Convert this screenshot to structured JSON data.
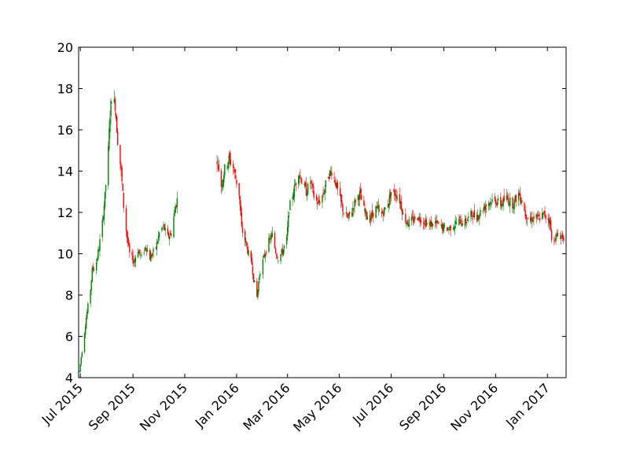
{
  "chart_data": {
    "type": "candlestick",
    "title": "",
    "xlabel": "",
    "ylabel": "",
    "grid": false,
    "legend": "none",
    "colors": {
      "up": "#008000",
      "down": "#ff0000",
      "axes": "#000000",
      "background": "#ffffff"
    },
    "x_range": [
      "2015-06-29",
      "2017-01-23"
    ],
    "ylim": [
      4,
      20
    ],
    "y_ticks": [
      4,
      6,
      8,
      10,
      12,
      14,
      16,
      18,
      20
    ],
    "x_ticks": [
      {
        "date": "2015-07-01",
        "label": "Jul 2015"
      },
      {
        "date": "2015-09-01",
        "label": "Sep 2015"
      },
      {
        "date": "2015-11-01",
        "label": "Nov 2015"
      },
      {
        "date": "2016-01-01",
        "label": "Jan 2016"
      },
      {
        "date": "2016-03-01",
        "label": "Mar 2016"
      },
      {
        "date": "2016-05-01",
        "label": "May 2016"
      },
      {
        "date": "2016-07-01",
        "label": "Jul 2016"
      },
      {
        "date": "2016-09-01",
        "label": "Sep 2016"
      },
      {
        "date": "2016-11-01",
        "label": "Nov 2016"
      },
      {
        "date": "2017-01-01",
        "label": "Jan 2017"
      }
    ],
    "approx_close_series": {
      "note_free": true,
      "points": [
        [
          "2015-06-30",
          4.3
        ],
        [
          "2015-07-02",
          5.0
        ],
        [
          "2015-07-06",
          6.2
        ],
        [
          "2015-07-08",
          6.9
        ],
        [
          "2015-07-13",
          8.3
        ],
        [
          "2015-07-15",
          9.2
        ],
        [
          "2015-07-20",
          9.6
        ],
        [
          "2015-07-23",
          10.3
        ],
        [
          "2015-07-27",
          11.5
        ],
        [
          "2015-07-30",
          12.8
        ],
        [
          "2015-08-03",
          15.0
        ],
        [
          "2015-08-05",
          16.8
        ],
        [
          "2015-08-07",
          17.6
        ],
        [
          "2015-08-11",
          17.2
        ],
        [
          "2015-08-14",
          15.5
        ],
        [
          "2015-08-18",
          14.0
        ],
        [
          "2015-08-21",
          12.3
        ],
        [
          "2015-08-25",
          10.8
        ],
        [
          "2015-08-28",
          10.0
        ],
        [
          "2015-09-02",
          9.6
        ],
        [
          "2015-09-07",
          10.2
        ],
        [
          "2015-09-11",
          9.8
        ],
        [
          "2015-09-16",
          10.4
        ],
        [
          "2015-09-21",
          9.8
        ],
        [
          "2015-09-28",
          10.3
        ],
        [
          "2015-10-02",
          11.0
        ],
        [
          "2015-10-07",
          11.3
        ],
        [
          "2015-10-12",
          10.8
        ],
        [
          "2015-10-16",
          11.0
        ],
        [
          "2015-10-21",
          12.3
        ],
        [
          "2015-10-23",
          12.6
        ],
        [
          "2015-12-09",
          14.6
        ],
        [
          "2015-12-14",
          13.3
        ],
        [
          "2015-12-18",
          14.1
        ],
        [
          "2015-12-23",
          14.6
        ],
        [
          "2015-12-28",
          14.2
        ],
        [
          "2016-01-04",
          12.9
        ],
        [
          "2016-01-07",
          11.2
        ],
        [
          "2016-01-12",
          10.5
        ],
        [
          "2016-01-15",
          10.0
        ],
        [
          "2016-01-19",
          9.5
        ],
        [
          "2016-01-21",
          8.8
        ],
        [
          "2016-01-25",
          7.9
        ],
        [
          "2016-01-28",
          9.0
        ],
        [
          "2016-02-02",
          9.8
        ],
        [
          "2016-02-08",
          10.6
        ],
        [
          "2016-02-12",
          10.9
        ],
        [
          "2016-02-16",
          10.1
        ],
        [
          "2016-02-19",
          9.8
        ],
        [
          "2016-02-24",
          10.1
        ],
        [
          "2016-02-29",
          10.7
        ],
        [
          "2016-03-03",
          12.2
        ],
        [
          "2016-03-08",
          13.0
        ],
        [
          "2016-03-14",
          14.0
        ],
        [
          "2016-03-18",
          13.5
        ],
        [
          "2016-03-23",
          13.0
        ],
        [
          "2016-03-28",
          13.5
        ],
        [
          "2016-04-01",
          12.8
        ],
        [
          "2016-04-06",
          12.4
        ],
        [
          "2016-04-12",
          12.9
        ],
        [
          "2016-04-18",
          13.8
        ],
        [
          "2016-04-22",
          14.0
        ],
        [
          "2016-04-27",
          13.4
        ],
        [
          "2016-05-02",
          12.6
        ],
        [
          "2016-05-06",
          12.0
        ],
        [
          "2016-05-11",
          11.7
        ],
        [
          "2016-05-16",
          12.1
        ],
        [
          "2016-05-20",
          12.6
        ],
        [
          "2016-05-25",
          12.9
        ],
        [
          "2016-05-31",
          12.0
        ],
        [
          "2016-06-06",
          11.7
        ],
        [
          "2016-06-13",
          12.2
        ],
        [
          "2016-06-20",
          11.9
        ],
        [
          "2016-06-27",
          12.4
        ],
        [
          "2016-07-01",
          13.0
        ],
        [
          "2016-07-07",
          12.9
        ],
        [
          "2016-07-12",
          12.5
        ],
        [
          "2016-07-15",
          11.9
        ],
        [
          "2016-07-20",
          11.5
        ],
        [
          "2016-07-26",
          11.6
        ],
        [
          "2016-08-01",
          11.8
        ],
        [
          "2016-08-08",
          11.6
        ],
        [
          "2016-08-15",
          11.4
        ],
        [
          "2016-08-22",
          11.5
        ],
        [
          "2016-08-29",
          11.3
        ],
        [
          "2016-09-06",
          11.2
        ],
        [
          "2016-09-13",
          11.4
        ],
        [
          "2016-09-19",
          11.6
        ],
        [
          "2016-09-26",
          11.5
        ],
        [
          "2016-10-03",
          11.9
        ],
        [
          "2016-10-10",
          11.8
        ],
        [
          "2016-10-17",
          12.2
        ],
        [
          "2016-10-24",
          12.5
        ],
        [
          "2016-10-31",
          12.6
        ],
        [
          "2016-11-07",
          12.4
        ],
        [
          "2016-11-14",
          12.7
        ],
        [
          "2016-11-21",
          12.4
        ],
        [
          "2016-11-28",
          12.9
        ],
        [
          "2016-12-02",
          12.6
        ],
        [
          "2016-12-06",
          11.9
        ],
        [
          "2016-12-12",
          11.6
        ],
        [
          "2016-12-16",
          11.8
        ],
        [
          "2016-12-21",
          11.7
        ],
        [
          "2016-12-28",
          11.9
        ],
        [
          "2017-01-04",
          11.6
        ],
        [
          "2017-01-06",
          10.6
        ],
        [
          "2017-01-10",
          10.8
        ],
        [
          "2017-01-16",
          10.9
        ],
        [
          "2017-01-20",
          10.8
        ]
      ]
    },
    "gaps": [
      [
        "2015-10-24",
        "2015-12-08"
      ]
    ]
  }
}
